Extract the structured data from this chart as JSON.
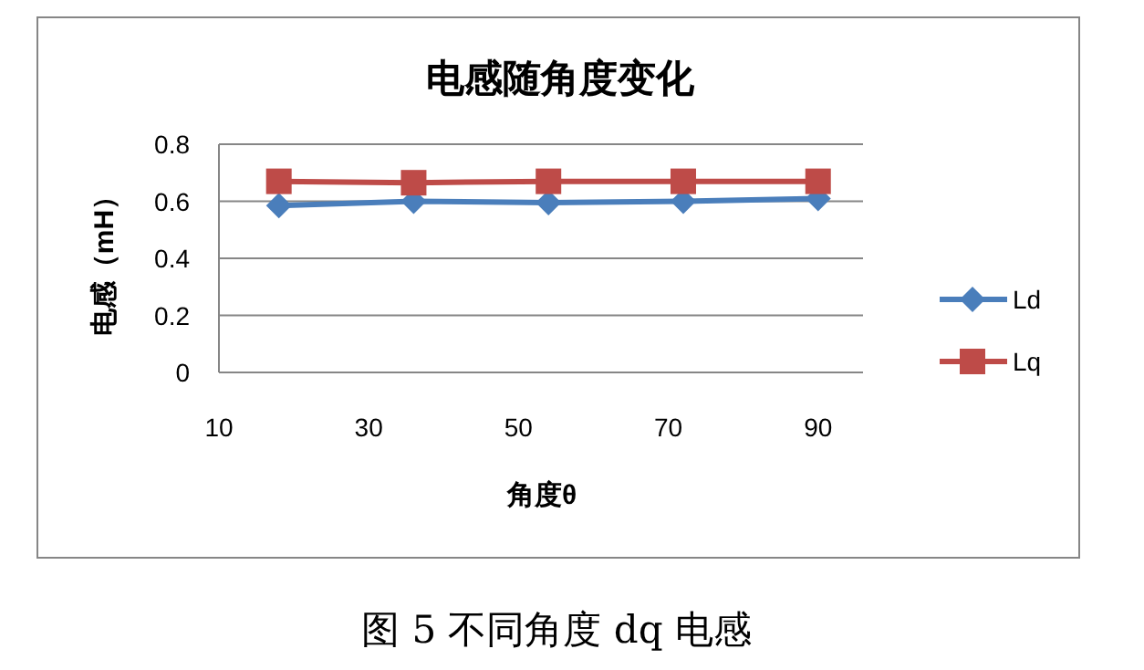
{
  "chart_data": {
    "type": "line",
    "title": "电感随角度变化",
    "xlabel": "角度θ",
    "ylabel": "电感（mH）",
    "x": [
      18,
      36,
      54,
      72,
      90
    ],
    "series": [
      {
        "name": "Ld",
        "color": "#4a7ebb",
        "values": [
          0.585,
          0.6,
          0.595,
          0.6,
          0.61
        ],
        "marker": "diamond"
      },
      {
        "name": "Lq",
        "color": "#be4b48",
        "values": [
          0.67,
          0.665,
          0.67,
          0.67,
          0.67
        ],
        "marker": "square"
      }
    ],
    "xlim": [
      10,
      96
    ],
    "xticks": [
      10,
      30,
      50,
      70,
      90
    ],
    "ylim": [
      0,
      0.8
    ],
    "yticks": [
      0,
      {
        "value": 0.2,
        "label": "0.2"
      },
      {
        "value": 0.4,
        "label": "0.4"
      },
      {
        "value": 0.6,
        "label": "0.6"
      },
      {
        "value": 0.8,
        "label": "0.8"
      }
    ],
    "grid": "y",
    "legend": "right",
    "line_style": "solid",
    "annotations": [
      "图 5 不同角度 dq 电感"
    ]
  }
}
